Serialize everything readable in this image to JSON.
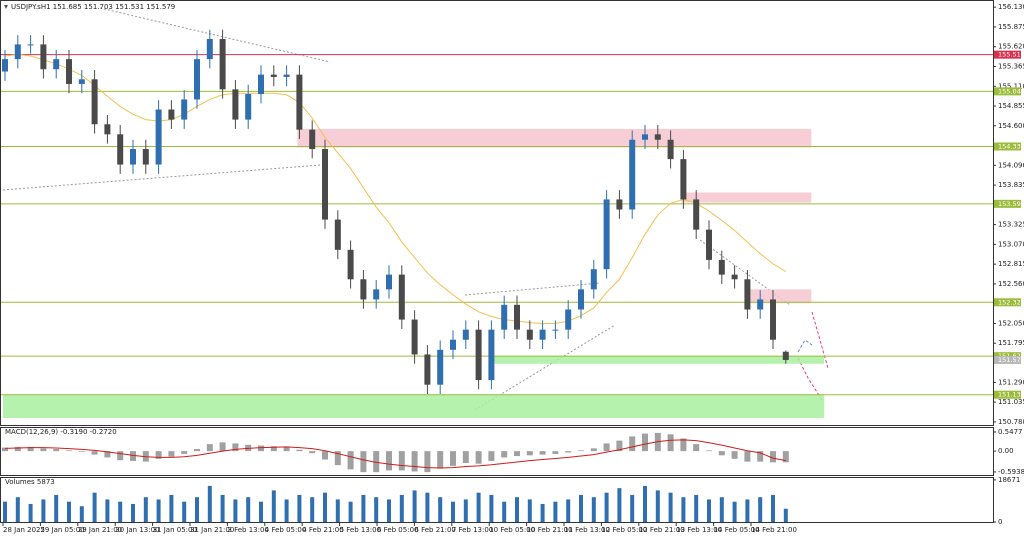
{
  "chart_data": {
    "type": "candlestick",
    "title": "USDJPY.sH1 151.685 151.703 151.531 151.579",
    "x_labels": [
      "28 Jan 2025",
      "29 Jan 05:00",
      "29 Jan 21:00",
      "30 Jan 13:00",
      "31 Jan 05:00",
      "31 Jan 21:00",
      "3 Feb 13:00",
      "4 Feb 05:00",
      "4 Feb 21:00",
      "5 Feb 13:00",
      "6 Feb 05:00",
      "6 Feb 21:00",
      "7 Feb 13:00",
      "10 Feb 05:00",
      "10 Feb 21:00",
      "11 Feb 13:00",
      "12 Feb 05:00",
      "12 Feb 21:00",
      "13 Feb 13:00",
      "14 Feb 05:00",
      "14 Feb 21:00"
    ],
    "ylim": [
      150.74,
      156.21
    ],
    "yticks": [
      {
        "value": 156.13,
        "label": "156.130"
      },
      155.875,
      {
        "value": 155.62,
        "label": "155.620"
      },
      155.365,
      {
        "value": 155.11,
        "label": "155.110"
      },
      154.855,
      {
        "value": 154.6,
        "label": "154.600"
      },
      {
        "value": 154.09,
        "label": "154.090"
      },
      153.835,
      153.325,
      {
        "value": 153.07,
        "label": "153.070"
      },
      152.815,
      {
        "value": 152.56,
        "label": "152.560"
      },
      {
        "value": 152.05,
        "label": "152.050"
      },
      151.795,
      {
        "value": 151.29,
        "label": "151.290"
      },
      151.035,
      {
        "value": 150.78,
        "label": "150.780"
      }
    ],
    "up_color": "#2f6fb0",
    "down_color": "#4a4a4a",
    "open": [
      155.3,
      155.46,
      155.65,
      155.65,
      155.33,
      155.46,
      155.14,
      155.2,
      154.62,
      154.49,
      154.1,
      154.3,
      154.1,
      154.81,
      154.68,
      154.94,
      155.46,
      155.72,
      155.07,
      154.68,
      155.01,
      155.26,
      155.23,
      155.26,
      154.55,
      154.3,
      153.39,
      153.0,
      152.62,
      152.36,
      152.49,
      152.68,
      152.1,
      151.65,
      151.26,
      151.71,
      151.84,
      151.97,
      151.32,
      151.97,
      152.29,
      151.97,
      151.84,
      151.97,
      151.97,
      152.23,
      152.49,
      152.75,
      153.65,
      153.52,
      154.42,
      154.49,
      154.42,
      154.17,
      153.65,
      153.26,
      152.87,
      152.68,
      152.62,
      152.23,
      152.36,
      151.685
    ],
    "high": [
      155.58,
      155.77,
      155.77,
      155.77,
      155.58,
      155.58,
      155.32,
      155.32,
      154.74,
      154.61,
      154.42,
      154.42,
      154.93,
      154.93,
      155.06,
      155.58,
      155.84,
      155.84,
      155.19,
      155.13,
      155.38,
      155.38,
      155.38,
      155.38,
      154.67,
      154.42,
      153.51,
      153.12,
      152.74,
      152.61,
      152.8,
      152.8,
      152.22,
      151.77,
      151.83,
      151.96,
      152.09,
      152.09,
      152.09,
      152.41,
      152.41,
      152.09,
      152.09,
      152.09,
      152.35,
      152.61,
      152.87,
      153.77,
      153.77,
      154.54,
      154.61,
      154.61,
      154.54,
      154.29,
      153.77,
      153.38,
      152.99,
      152.8,
      152.74,
      152.48,
      152.48,
      151.703
    ],
    "low": [
      155.18,
      155.34,
      155.53,
      155.21,
      155.21,
      155.02,
      155.02,
      154.5,
      154.37,
      153.98,
      153.98,
      153.98,
      153.98,
      154.56,
      154.56,
      154.82,
      155.34,
      154.95,
      154.56,
      154.56,
      154.89,
      155.11,
      155.11,
      154.43,
      154.18,
      153.27,
      152.88,
      152.5,
      152.24,
      152.24,
      152.37,
      151.98,
      151.53,
      151.14,
      151.14,
      151.59,
      151.72,
      151.2,
      151.2,
      151.85,
      151.85,
      151.72,
      151.72,
      151.85,
      151.85,
      152.11,
      152.37,
      152.63,
      153.4,
      153.4,
      154.3,
      154.3,
      154.05,
      153.53,
      153.14,
      152.75,
      152.56,
      152.5,
      152.11,
      152.11,
      151.72,
      151.531
    ],
    "close": [
      155.46,
      155.65,
      155.65,
      155.33,
      155.46,
      155.14,
      155.2,
      154.62,
      154.49,
      154.1,
      154.3,
      154.1,
      154.81,
      154.68,
      154.94,
      155.46,
      155.72,
      155.07,
      154.68,
      155.01,
      155.26,
      155.23,
      155.26,
      154.55,
      154.3,
      153.39,
      153.0,
      152.62,
      152.36,
      152.49,
      152.68,
      152.1,
      151.65,
      151.26,
      151.71,
      151.84,
      151.97,
      151.32,
      151.97,
      152.29,
      151.97,
      151.84,
      151.97,
      151.97,
      152.23,
      152.49,
      152.75,
      153.65,
      153.52,
      154.42,
      154.49,
      154.42,
      154.17,
      153.65,
      153.26,
      152.87,
      152.68,
      152.62,
      152.23,
      152.36,
      151.84,
      151.579
    ],
    "ma": {
      "color": "#f2c14e",
      "values": [
        155.5,
        155.52,
        155.5,
        155.45,
        155.4,
        155.33,
        155.25,
        155.12,
        154.98,
        154.85,
        154.75,
        154.68,
        154.66,
        154.68,
        154.75,
        154.85,
        154.94,
        155.0,
        155.02,
        155.02,
        155.02,
        155.02,
        155.0,
        154.9,
        154.7,
        154.45,
        154.25,
        154.05,
        153.8,
        153.55,
        153.35,
        153.1,
        152.9,
        152.7,
        152.55,
        152.42,
        152.3,
        152.2,
        152.14,
        152.1,
        152.08,
        152.06,
        152.05,
        152.05,
        152.08,
        152.15,
        152.25,
        152.45,
        152.62,
        152.9,
        153.2,
        153.45,
        153.6,
        153.65,
        153.6,
        153.5,
        153.38,
        153.25,
        153.1,
        152.95,
        152.82,
        152.72
      ]
    },
    "levels": [
      {
        "value": 155.518,
        "color": "#d9304f"
      },
      {
        "value": 155.044,
        "color": "#9bbb3a"
      },
      {
        "value": 154.333,
        "color": "#9bbb3a"
      },
      {
        "value": 153.593,
        "color": "#9bbb3a"
      },
      {
        "value": 152.323,
        "color": "#9bbb3a"
      },
      {
        "value": 151.628,
        "color": "#9bbb3a"
      },
      {
        "value": 151.131,
        "color": "#9bbb3a"
      }
    ],
    "current_price": 151.579,
    "zones": [
      {
        "from": 154.56,
        "to": 154.32,
        "start": 23,
        "end": 63,
        "color": "#f7c6cf"
      },
      {
        "from": 153.74,
        "to": 153.61,
        "start": 53,
        "end": 63,
        "color": "#f7c6cf"
      },
      {
        "from": 152.49,
        "to": 152.31,
        "start": 58,
        "end": 63,
        "color": "#f7c6cf"
      },
      {
        "from": 151.63,
        "to": 151.53,
        "start": 38,
        "end": 64,
        "color": "#a8f0a0"
      },
      {
        "from": 151.13,
        "to": 150.83,
        "start": 0,
        "end": 64,
        "color": "#a8f0a0"
      }
    ],
    "macd": {
      "title": "MACD(12,26,9) -0.3190 -0.2720",
      "ylim": [
        -0.71,
        0.66
      ],
      "yticks": [
        0.5477,
        {
          "value": 0,
          "label": "0.00"
        },
        -0.5938
      ],
      "color": "#a0a0a0",
      "signal_color": "#d01c1c",
      "values": [
        0.1,
        0.12,
        0.12,
        0.08,
        0.06,
        0.02,
        -0.02,
        -0.1,
        -0.18,
        -0.26,
        -0.28,
        -0.3,
        -0.22,
        -0.16,
        -0.08,
        0.06,
        0.2,
        0.25,
        0.22,
        0.18,
        0.16,
        0.14,
        0.12,
        0.04,
        -0.06,
        -0.24,
        -0.4,
        -0.52,
        -0.6,
        -0.6,
        -0.55,
        -0.55,
        -0.58,
        -0.6,
        -0.5,
        -0.42,
        -0.34,
        -0.36,
        -0.28,
        -0.18,
        -0.14,
        -0.12,
        -0.1,
        -0.08,
        -0.04,
        0.02,
        0.08,
        0.22,
        0.3,
        0.42,
        0.5,
        0.52,
        0.48,
        0.36,
        0.2,
        0.02,
        -0.12,
        -0.22,
        -0.3,
        -0.3,
        -0.32,
        -0.319
      ],
      "signal": [
        0.08,
        0.09,
        0.1,
        0.1,
        0.09,
        0.07,
        0.05,
        0.02,
        -0.02,
        -0.07,
        -0.12,
        -0.16,
        -0.18,
        -0.18,
        -0.16,
        -0.12,
        -0.06,
        0.0,
        0.05,
        0.08,
        0.1,
        0.11,
        0.12,
        0.1,
        0.07,
        0.01,
        -0.07,
        -0.16,
        -0.25,
        -0.32,
        -0.37,
        -0.41,
        -0.44,
        -0.47,
        -0.48,
        -0.47,
        -0.44,
        -0.42,
        -0.39,
        -0.35,
        -0.31,
        -0.27,
        -0.24,
        -0.21,
        -0.18,
        -0.14,
        -0.1,
        -0.03,
        0.04,
        0.12,
        0.2,
        0.27,
        0.31,
        0.32,
        0.3,
        0.24,
        0.17,
        0.09,
        0.01,
        -0.05,
        -0.2,
        -0.272
      ]
    },
    "volumes": {
      "title": "Volumes 5873",
      "ylim": [
        0,
        19500
      ],
      "yticks": [
        18671,
        0
      ],
      "color": "#2f6fb0",
      "values": [
        9000,
        11000,
        8000,
        10000,
        12000,
        9000,
        7000,
        13000,
        10000,
        9000,
        8000,
        11000,
        10000,
        12000,
        9000,
        11000,
        16000,
        12000,
        10000,
        11000,
        9000,
        14000,
        10000,
        12000,
        11000,
        13000,
        10000,
        9000,
        12000,
        11000,
        10000,
        12000,
        14000,
        13000,
        11000,
        9000,
        10000,
        13000,
        12000,
        9000,
        11000,
        10000,
        8000,
        9000,
        10000,
        12000,
        11000,
        13000,
        15000,
        12000,
        16000,
        14000,
        13000,
        11000,
        12000,
        10000,
        11000,
        9000,
        10000,
        11000,
        12000,
        5873
      ]
    }
  }
}
